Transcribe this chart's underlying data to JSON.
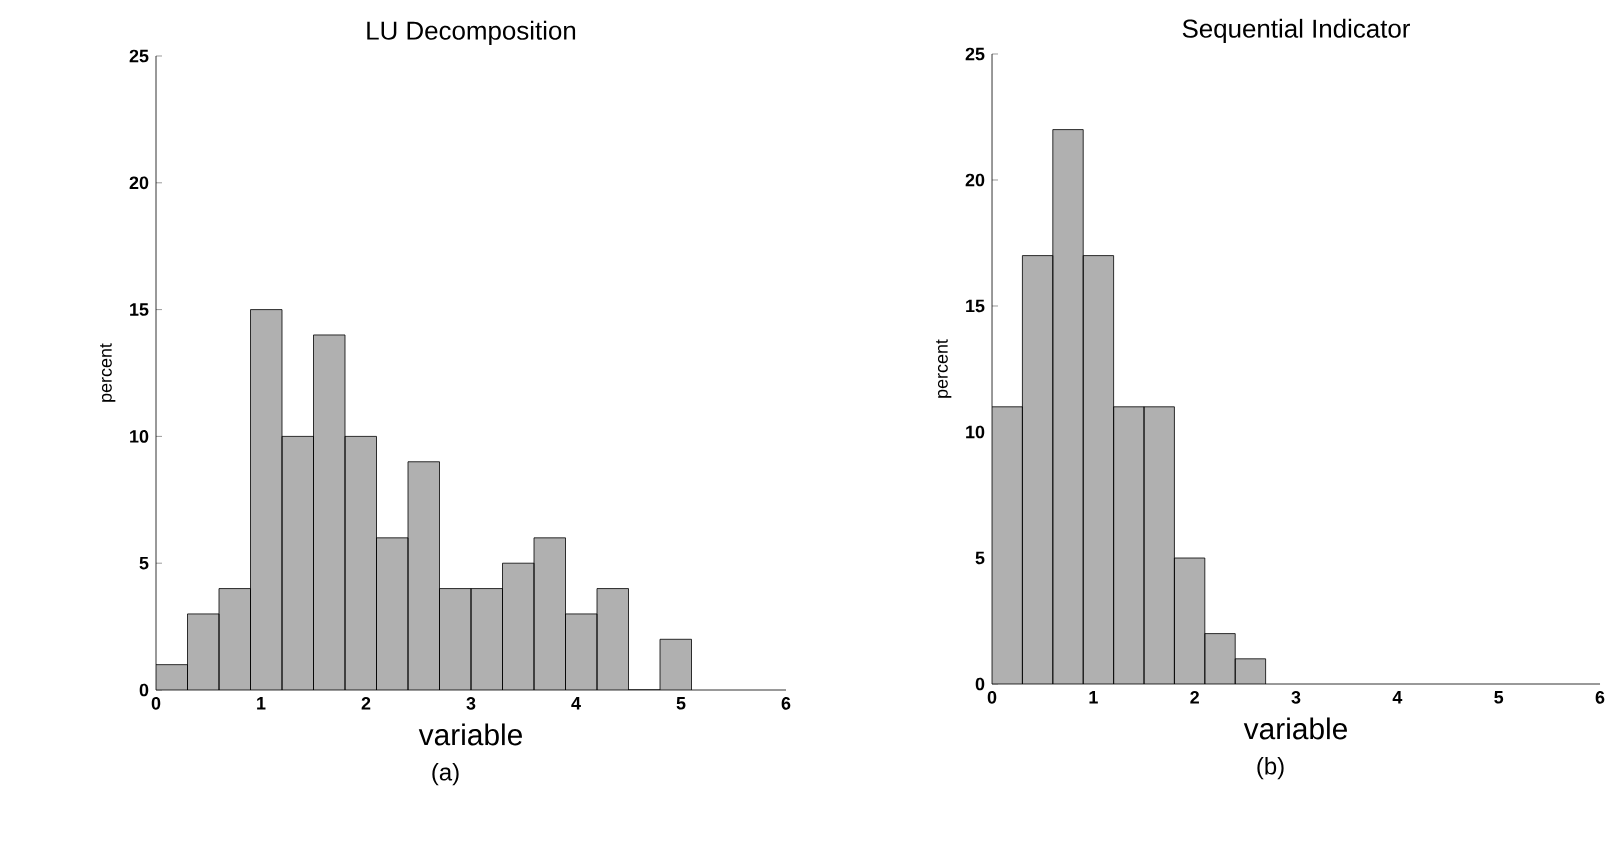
{
  "chart_data": [
    {
      "type": "histogram",
      "title": "LU Decomposition",
      "xlabel": "variable",
      "ylabel": "percent",
      "bins": [
        0,
        0.3,
        0.6,
        0.9,
        1.2,
        1.5,
        1.8,
        2.1,
        2.4,
        2.7,
        3.0,
        3.3,
        3.6,
        3.9,
        4.2,
        4.5,
        4.8,
        5.1
      ],
      "values": [
        1,
        3,
        4,
        15,
        10,
        14,
        10,
        6,
        9,
        4,
        4,
        5,
        6,
        3,
        4,
        0,
        2
      ],
      "color": "#b0b0b0",
      "xlim": [
        0,
        6
      ],
      "ylim": [
        0,
        25
      ],
      "xticks": [
        0,
        1,
        2,
        3,
        4,
        5,
        6
      ],
      "yticks": [
        0,
        5,
        10,
        15,
        20,
        25
      ],
      "annotations": [
        "(a)"
      ]
    },
    {
      "type": "histogram",
      "title": "Sequential Indicator",
      "xlabel": "variable",
      "ylabel": "percent",
      "bins": [
        0,
        0.3,
        0.6,
        0.9,
        1.2,
        1.5,
        1.8,
        2.1,
        2.4,
        2.7
      ],
      "values": [
        11,
        17,
        22,
        17,
        11,
        11,
        5,
        2,
        1
      ],
      "color": "#b0b0b0",
      "xlim": [
        0,
        6
      ],
      "ylim": [
        0,
        25
      ],
      "xticks": [
        0,
        1,
        2,
        3,
        4,
        5,
        6
      ],
      "yticks": [
        0,
        5,
        10,
        15,
        20,
        25
      ],
      "annotations": [
        "(b)"
      ]
    }
  ]
}
